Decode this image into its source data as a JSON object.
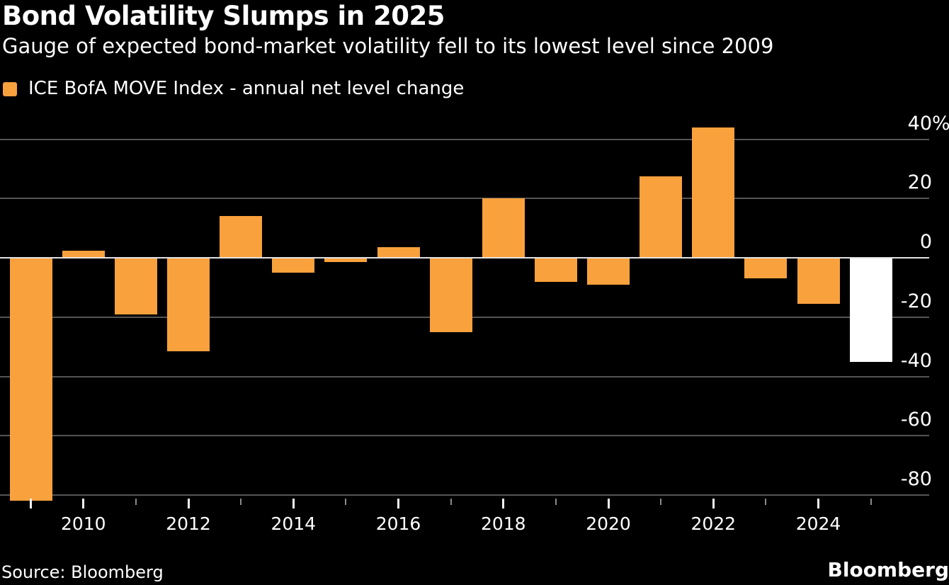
{
  "header": {
    "title": "Bond Volatility Slumps in 2025",
    "subtitle": "Gauge of expected bond-market volatility fell to its lowest level since 2009"
  },
  "legend": {
    "label": "ICE BofA MOVE Index - annual net level change"
  },
  "chart_data": {
    "type": "bar",
    "categories": [
      2009,
      2010,
      2011,
      2012,
      2013,
      2014,
      2015,
      2016,
      2017,
      2018,
      2019,
      2020,
      2021,
      2022,
      2023,
      2024,
      2025
    ],
    "values": [
      -82,
      2.5,
      -19,
      -31.5,
      14,
      -5,
      -1.5,
      3.5,
      -25,
      20,
      -8,
      -9,
      27.5,
      44,
      -7,
      -15.5,
      -35
    ],
    "title": "Bond Volatility Slumps in 2025",
    "series_name": "ICE BofA MOVE Index - annual net level change",
    "xlabel": "",
    "ylabel": "annual net level change (%)",
    "ylim": [
      -85,
      48
    ],
    "yticks": [
      40,
      20,
      0,
      -20,
      -40,
      -60,
      -80
    ],
    "ytick_labels": [
      "40%",
      "20",
      "0",
      "-20",
      "-40",
      "-60",
      "-80"
    ],
    "xtick_labeled_years": [
      "2010",
      "2012",
      "2014",
      "2016",
      "2018",
      "2020",
      "2022",
      "2024"
    ],
    "grid": "horizontal",
    "legend_position": "top-left",
    "highlight_year": 2025
  },
  "colors": {
    "background": "#000000",
    "bar": "#F9A13C",
    "highlight_bar": "#FFFFFF",
    "grid": "#545454",
    "zero_line": "#E2E2E2",
    "text": "#FFFFFF",
    "major_tick": "#F2F2F2",
    "minor_tick": "#8A8A8A"
  },
  "footer": {
    "source": "Source: Bloomberg",
    "logo": "Bloomberg"
  }
}
